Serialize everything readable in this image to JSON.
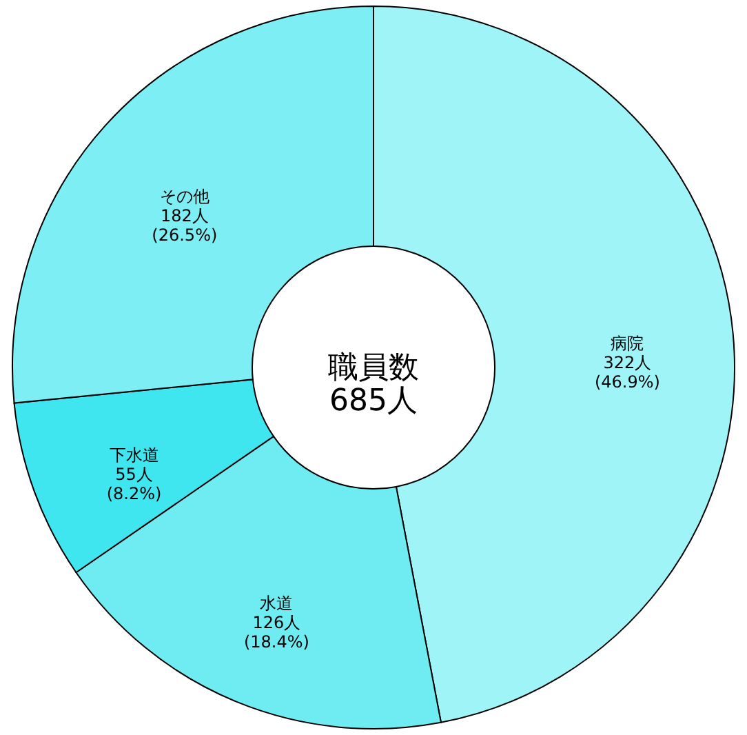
{
  "chart_data": {
    "type": "donut",
    "categories": [
      "病院",
      "水道",
      "下水道",
      "その他"
    ],
    "values": [
      322,
      126,
      55,
      182
    ],
    "colors": [
      "#9ff4f8",
      "#6febf2",
      "#3fe6ef",
      "#7defF4"
    ],
    "value_labels": [
      "322人\n(46.9%)",
      "126人\n(18.4%)",
      "55人\n(8.2%)",
      "182人\n(26.5%)"
    ],
    "annotations": [
      "職員数\n685人"
    ]
  }
}
